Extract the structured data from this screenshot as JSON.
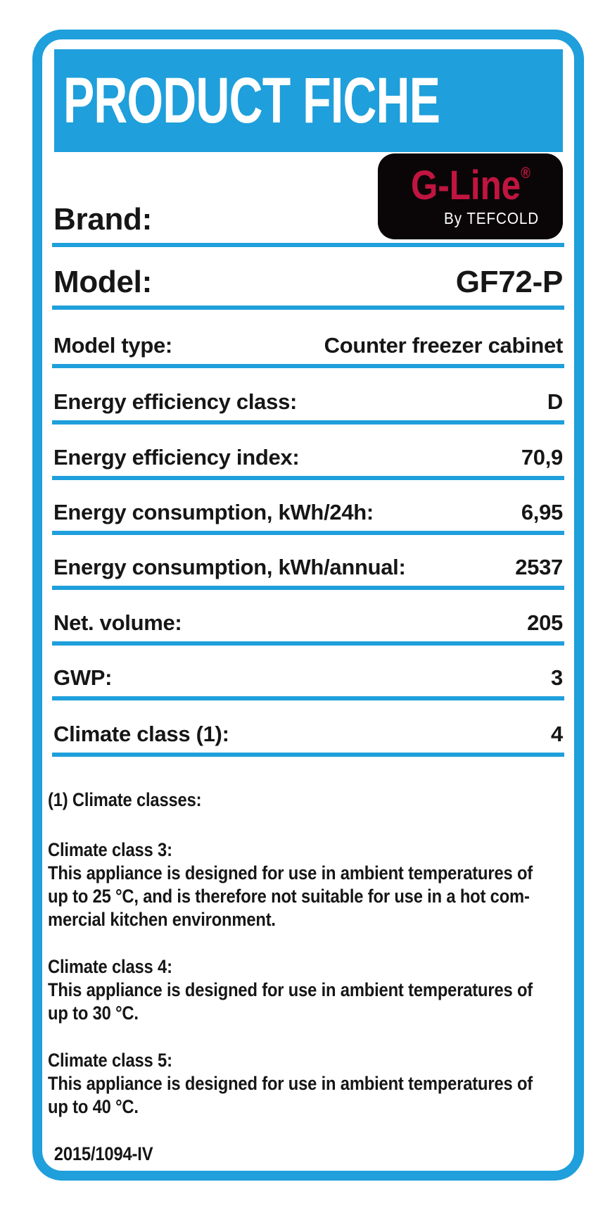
{
  "page": {
    "title": "PRODUCT FICHE",
    "regulation": "2015/1094-IV"
  },
  "logo": {
    "wordmark": "G-Line",
    "registered": "®",
    "byline": "By TEFCOLD"
  },
  "colors": {
    "accent_blue": "#1f9fdb",
    "logo_red": "#c01540",
    "logo_bg": "#0a0607",
    "text": "#161616"
  },
  "spec_rows": [
    {
      "label": "Brand:",
      "value": ""
    },
    {
      "label": "Model:",
      "value": "GF72-P"
    },
    {
      "label": "Model type:",
      "value": "Counter freezer cabinet"
    },
    {
      "label": "Energy efficiency class:",
      "value": "D"
    },
    {
      "label": "Energy efficiency index:",
      "value": "70,9"
    },
    {
      "label": "Energy consumption, kWh/24h:",
      "value": "6,95"
    },
    {
      "label": "Energy consumption, kWh/annual:",
      "value": "2537"
    },
    {
      "label": "Net. volume:",
      "value": "205"
    },
    {
      "label": "GWP:",
      "value": "3"
    },
    {
      "label": "Climate class (1):",
      "value": "4"
    }
  ],
  "footnote": {
    "heading": "(1) Climate classes:",
    "blocks": [
      {
        "title": "Climate class 3:",
        "body": "This appliance is designed for use in ambient temperatures of\nup to 25 °C, and is therefore not suitable for use in a hot com-\nmercial kitchen environment."
      },
      {
        "title": "Climate class 4:",
        "body": "This appliance is designed for use in ambient temperatures of\nup to 30 °C."
      },
      {
        "title": "Climate class 5:",
        "body": "This appliance is designed for use in ambient temperatures of\nup to 40 °C."
      }
    ]
  }
}
